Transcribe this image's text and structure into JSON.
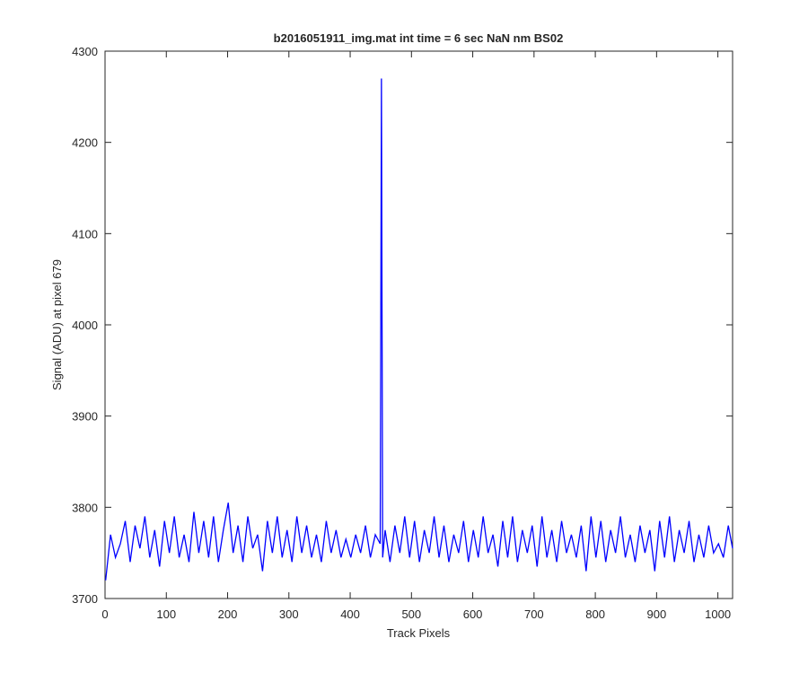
{
  "chart_data": {
    "type": "line",
    "title": "b2016051911_img.mat int time = 6 sec  NaN nm BS02",
    "x_label": "Track Pixels",
    "y_label": "Signal (ADU) at pixel 679",
    "xlim": [
      0,
      1024
    ],
    "ylim": [
      3700,
      4300
    ],
    "xticks": [
      0,
      100,
      200,
      300,
      400,
      500,
      600,
      700,
      800,
      900,
      1000
    ],
    "yticks": [
      3700,
      3800,
      3900,
      4000,
      4100,
      4200,
      4300
    ],
    "grid": false,
    "x": [
      1,
      9,
      17,
      25,
      33,
      41,
      49,
      57,
      65,
      73,
      81,
      89,
      97,
      105,
      113,
      121,
      129,
      137,
      145,
      153,
      161,
      169,
      177,
      185,
      193,
      201,
      209,
      217,
      225,
      233,
      241,
      249,
      257,
      265,
      273,
      281,
      289,
      297,
      305,
      313,
      321,
      329,
      337,
      345,
      353,
      361,
      369,
      377,
      385,
      393,
      401,
      409,
      417,
      425,
      433,
      441,
      449,
      451,
      453,
      457,
      465,
      473,
      481,
      489,
      497,
      505,
      513,
      521,
      529,
      537,
      545,
      553,
      561,
      569,
      577,
      585,
      593,
      601,
      609,
      617,
      625,
      633,
      641,
      649,
      657,
      665,
      673,
      681,
      689,
      697,
      705,
      713,
      721,
      729,
      737,
      745,
      753,
      761,
      769,
      777,
      785,
      793,
      801,
      809,
      817,
      825,
      833,
      841,
      849,
      857,
      865,
      873,
      881,
      889,
      897,
      905,
      913,
      921,
      929,
      937,
      945,
      953,
      961,
      969,
      977,
      985,
      993,
      1001,
      1009,
      1017,
      1024
    ],
    "series": [
      {
        "color": "#0000ff",
        "values": [
          3720,
          3770,
          3745,
          3760,
          3785,
          3740,
          3780,
          3755,
          3790,
          3745,
          3775,
          3735,
          3785,
          3750,
          3790,
          3745,
          3770,
          3740,
          3795,
          3750,
          3785,
          3745,
          3790,
          3740,
          3775,
          3805,
          3750,
          3780,
          3740,
          3790,
          3755,
          3770,
          3730,
          3785,
          3750,
          3790,
          3745,
          3775,
          3740,
          3790,
          3750,
          3780,
          3745,
          3770,
          3740,
          3785,
          3750,
          3775,
          3745,
          3765,
          3745,
          3770,
          3750,
          3780,
          3745,
          3770,
          3760,
          4270,
          3745,
          3775,
          3740,
          3780,
          3750,
          3790,
          3745,
          3785,
          3740,
          3775,
          3750,
          3790,
          3745,
          3780,
          3740,
          3770,
          3750,
          3785,
          3740,
          3775,
          3745,
          3790,
          3750,
          3770,
          3735,
          3785,
          3745,
          3790,
          3740,
          3775,
          3750,
          3780,
          3735,
          3790,
          3745,
          3775,
          3740,
          3785,
          3750,
          3770,
          3745,
          3780,
          3730,
          3790,
          3745,
          3785,
          3740,
          3775,
          3750,
          3790,
          3745,
          3770,
          3740,
          3780,
          3750,
          3775,
          3730,
          3785,
          3745,
          3790,
          3740,
          3775,
          3750,
          3785,
          3740,
          3770,
          3745,
          3780,
          3750,
          3760,
          3745,
          3780,
          3755
        ]
      }
    ]
  }
}
